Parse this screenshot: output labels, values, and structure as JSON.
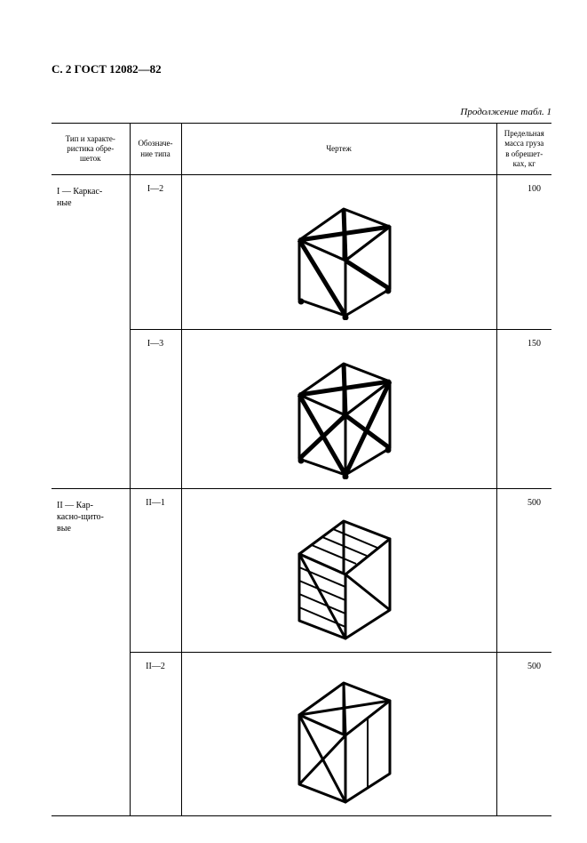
{
  "page_header": "С. 2 ГОСТ 12082—82",
  "continuation": "Продолжение табл. 1",
  "columns": {
    "c1": "Тип и характе-\nристика обре-\nшеток",
    "c2": "Обозначе-\nние типа",
    "c3": "Чертеж",
    "c4": "Предельная\nмасса груза\nв обрешет-\nках, кг"
  },
  "rows": [
    {
      "type": "I — Каркас-\nные",
      "desig": "I—2",
      "mass": "100",
      "rowspan_type": 2
    },
    {
      "type": "",
      "desig": "I—3",
      "mass": "150"
    },
    {
      "type": "II — Кар-\nкасно-щито-\nвые",
      "desig": "II—1",
      "mass": "500",
      "rowspan_type": 2
    },
    {
      "type": "",
      "desig": "II—2",
      "mass": "500"
    }
  ],
  "style": {
    "stroke": "#000000",
    "fill": "#ffffff",
    "crate_width": 130,
    "crate_height": 145
  }
}
